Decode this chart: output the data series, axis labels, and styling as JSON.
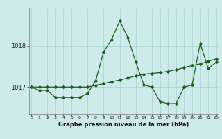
{
  "x": [
    0,
    1,
    2,
    3,
    4,
    5,
    6,
    7,
    8,
    9,
    10,
    11,
    12,
    13,
    14,
    15,
    16,
    17,
    18,
    19,
    20,
    21,
    22,
    23
  ],
  "series1": [
    1017.0,
    1016.92,
    1016.92,
    1016.75,
    1016.75,
    1016.75,
    1016.75,
    1016.85,
    1017.15,
    1017.85,
    1018.15,
    1018.6,
    1018.2,
    1017.6,
    1017.05,
    1017.0,
    1016.65,
    1016.6,
    1016.6,
    1017.0,
    1017.05,
    1018.05,
    1017.45,
    1017.6
  ],
  "series2": [
    1017.0,
    1017.0,
    1017.0,
    1017.0,
    1017.0,
    1017.0,
    1017.0,
    1017.0,
    1017.04,
    1017.08,
    1017.13,
    1017.17,
    1017.22,
    1017.27,
    1017.31,
    1017.33,
    1017.35,
    1017.38,
    1017.42,
    1017.47,
    1017.52,
    1017.56,
    1017.62,
    1017.68
  ],
  "line_color": "#1a5e1a",
  "bg_color": "#ceeaea",
  "grid_color": "#aad0d0",
  "title": "Graphe pression niveau de la mer (hPa)",
  "xlim": [
    -0.3,
    23.3
  ],
  "ylim": [
    1016.35,
    1018.9
  ],
  "yticks": [
    1017,
    1018
  ],
  "xticks": [
    0,
    1,
    2,
    3,
    4,
    5,
    6,
    7,
    8,
    9,
    10,
    11,
    12,
    13,
    14,
    15,
    16,
    17,
    18,
    19,
    20,
    21,
    22,
    23
  ]
}
